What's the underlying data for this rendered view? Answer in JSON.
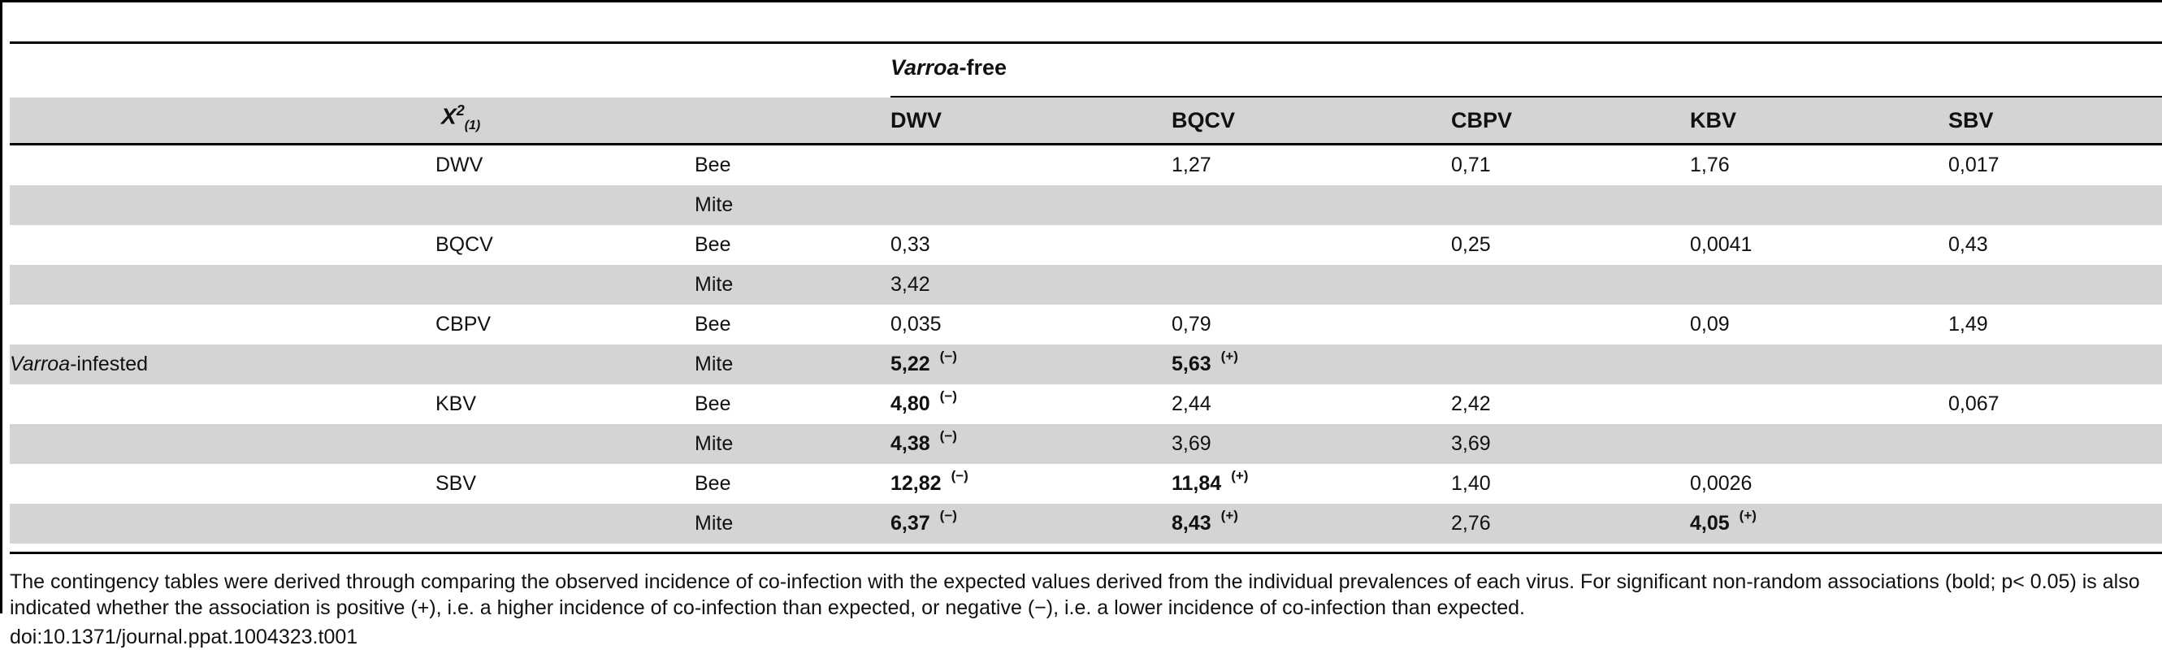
{
  "table": {
    "varroa_free_italic": "Varroa",
    "varroa_free_rest": "-free",
    "stat_label": "X",
    "stat_sup": "2",
    "stat_sub": "(1)",
    "column_headers": [
      "DWV",
      "BQCV",
      "CBPV",
      "KBV",
      "SBV"
    ],
    "row_group_italic": "Varroa",
    "row_group_rest": "-infested",
    "rows": [
      {
        "virus": "DWV",
        "host": "Bee",
        "cells": [
          "",
          "1,27",
          "0,71",
          "1,76",
          "0,017"
        ],
        "bold": [
          false,
          false,
          false,
          false,
          false
        ],
        "signs": [
          "",
          "",
          "",
          "",
          ""
        ]
      },
      {
        "virus": "",
        "host": "Mite",
        "cells": [
          "",
          "",
          "",
          "",
          ""
        ],
        "bold": [
          false,
          false,
          false,
          false,
          false
        ],
        "signs": [
          "",
          "",
          "",
          "",
          ""
        ]
      },
      {
        "virus": "BQCV",
        "host": "Bee",
        "cells": [
          "0,33",
          "",
          "0,25",
          "0,0041",
          "0,43"
        ],
        "bold": [
          false,
          false,
          false,
          false,
          false
        ],
        "signs": [
          "",
          "",
          "",
          "",
          ""
        ]
      },
      {
        "virus": "",
        "host": "Mite",
        "cells": [
          "3,42",
          "",
          "",
          "",
          ""
        ],
        "bold": [
          false,
          false,
          false,
          false,
          false
        ],
        "signs": [
          "",
          "",
          "",
          "",
          ""
        ]
      },
      {
        "virus": "CBPV",
        "host": "Bee",
        "cells": [
          "0,035",
          "0,79",
          "",
          "0,09",
          "1,49"
        ],
        "bold": [
          false,
          false,
          false,
          false,
          false
        ],
        "signs": [
          "",
          "",
          "",
          "",
          ""
        ]
      },
      {
        "virus": "",
        "host": "Mite",
        "cells": [
          "5,22",
          "5,63",
          "",
          "",
          ""
        ],
        "bold": [
          true,
          true,
          false,
          false,
          false
        ],
        "signs": [
          "(−)",
          "(+)",
          "",
          "",
          ""
        ]
      },
      {
        "virus": "KBV",
        "host": "Bee",
        "cells": [
          "4,80",
          "2,44",
          "2,42",
          "",
          "0,067"
        ],
        "bold": [
          true,
          false,
          false,
          false,
          false
        ],
        "signs": [
          "(−)",
          "",
          "",
          "",
          ""
        ]
      },
      {
        "virus": "",
        "host": "Mite",
        "cells": [
          "4,38",
          "3,69",
          "3,69",
          "",
          ""
        ],
        "bold": [
          true,
          false,
          false,
          false,
          false
        ],
        "signs": [
          "(−)",
          "",
          "",
          "",
          ""
        ]
      },
      {
        "virus": "SBV",
        "host": "Bee",
        "cells": [
          "12,82",
          "11,84",
          "1,40",
          "0,0026",
          ""
        ],
        "bold": [
          true,
          true,
          false,
          false,
          false
        ],
        "signs": [
          "(−)",
          "(+)",
          "",
          "",
          ""
        ]
      },
      {
        "virus": "",
        "host": "Mite",
        "cells": [
          "6,37",
          "8,43",
          "2,76",
          "4,05",
          ""
        ],
        "bold": [
          true,
          true,
          false,
          true,
          false
        ],
        "signs": [
          "(−)",
          "(+)",
          "",
          "(+)",
          ""
        ]
      }
    ]
  },
  "footnote": "The contingency tables were derived through comparing the observed incidence of co-infection with the expected values derived from the individual prevalences of each virus. For significant non-random associations (bold; p< 0.05) is also indicated whether the association is positive (+), i.e. a higher incidence of co-infection than expected, or negative (−), i.e. a lower incidence of co-infection than expected.",
  "doi": "doi:10.1371/journal.ppat.1004323.t001"
}
